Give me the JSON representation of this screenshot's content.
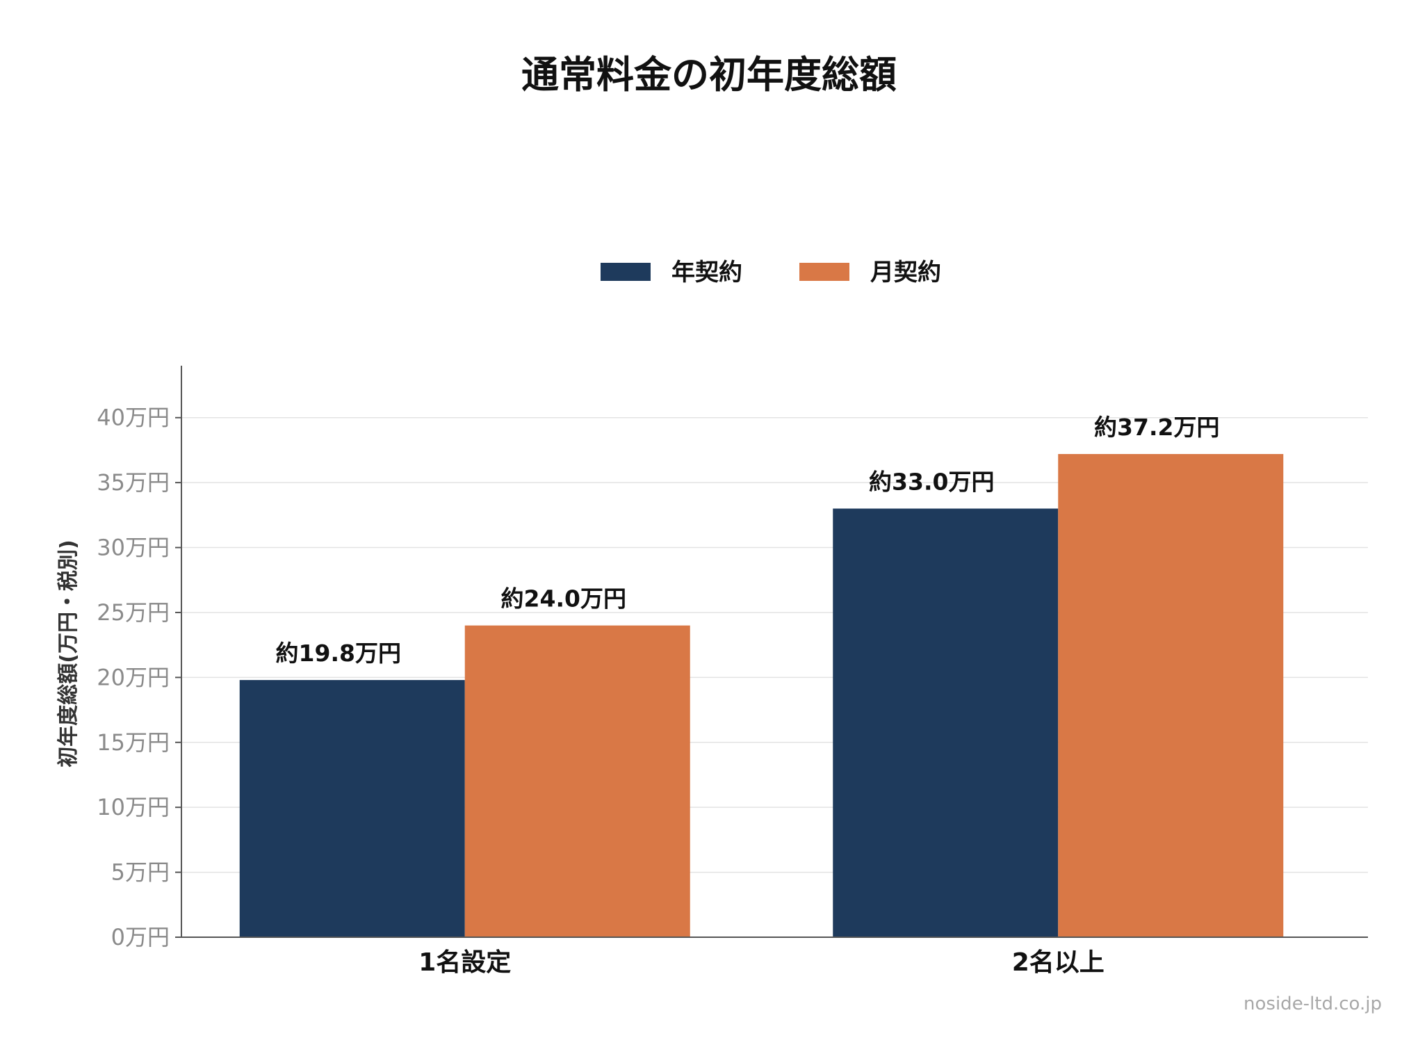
{
  "chart_data": {
    "type": "bar",
    "title": "通常料金の初年度総額",
    "ylabel": "初年度総額(万円・税別)",
    "xlabel": "",
    "categories": [
      "1名設定",
      "2名以上"
    ],
    "series": [
      {
        "name": "年契約",
        "color": "#1e3a5c",
        "values": [
          19.8,
          33.0
        ],
        "labels": [
          "約19.8万円",
          "約33.0万円"
        ]
      },
      {
        "name": "月契約",
        "color": "#d97846",
        "values": [
          24.0,
          37.2
        ],
        "labels": [
          "約24.0万円",
          "約37.2万円"
        ]
      }
    ],
    "ylim": [
      0,
      44
    ],
    "yticks": [
      0,
      5,
      10,
      15,
      20,
      25,
      30,
      35,
      40
    ],
    "ytick_labels": [
      "0万円",
      "5万円",
      "10万円",
      "15万円",
      "20万円",
      "25万円",
      "30万円",
      "35万円",
      "40万円"
    ],
    "grid": true,
    "legend_position": "top-center"
  },
  "credit": "noside-ltd.co.jp"
}
